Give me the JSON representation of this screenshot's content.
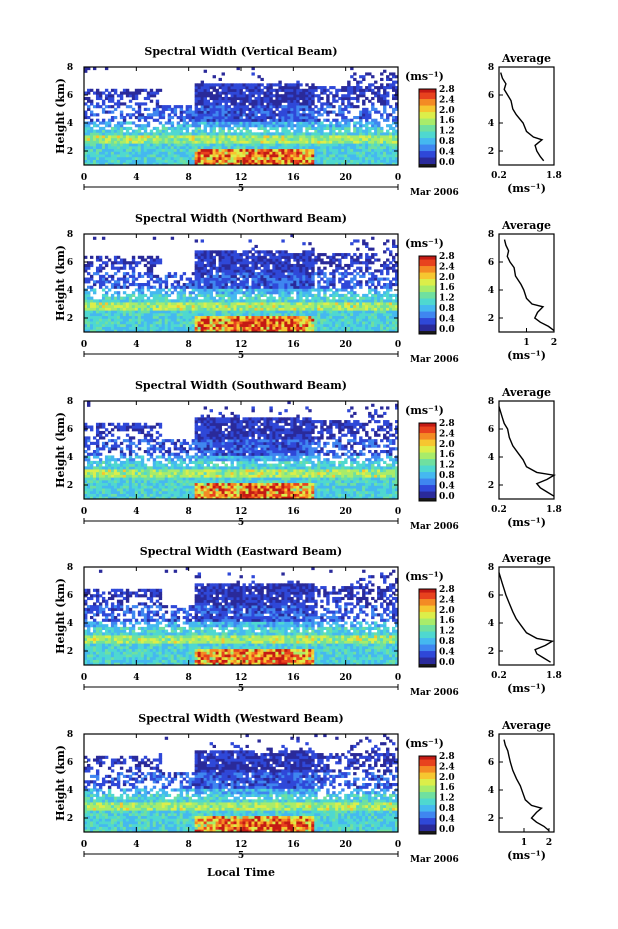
{
  "colors": {
    "scale": [
      "#1a1a1a",
      "#2a2a9a",
      "#2f48d8",
      "#3f86f0",
      "#45b8f0",
      "#4fd8d0",
      "#6fe0a0",
      "#a8ec6a",
      "#dcee4a",
      "#f6c630",
      "#f48a24",
      "#e8421e",
      "#c41a14"
    ],
    "axis": "#000000"
  },
  "chart_data": [
    {
      "type": "heatmap",
      "title": "Spectral Width (Vertical Beam)",
      "ylabel": "Height (km)",
      "xlabel": "",
      "x_ticks": [
        "0",
        "4",
        "8",
        "12",
        "16",
        "20",
        "0"
      ],
      "day_label": "5",
      "date_label": "Mar 2006",
      "ylim": [
        1,
        8
      ],
      "y_ticks": [
        "2",
        "4",
        "6",
        "8"
      ],
      "xlim": [
        0,
        24
      ],
      "colorbar": {
        "unit": "(ms⁻¹)",
        "ticks": [
          "2.8",
          "2.4",
          "2.0",
          "1.6",
          "1.2",
          "0.8",
          "0.4",
          "0.0"
        ],
        "range": [
          0,
          3
        ]
      },
      "average": {
        "title": "Average",
        "xlabel": "(ms⁻¹)",
        "x_ticks": [
          "0.2",
          "1.8"
        ],
        "xlim": [
          0.2,
          1.8
        ],
        "ylim": [
          1,
          8
        ],
        "y_ticks": [
          "2",
          "4",
          "6",
          "8"
        ],
        "profile": [
          [
            1.5,
            1.3
          ],
          [
            1.4,
            1.6
          ],
          [
            1.3,
            2.0
          ],
          [
            1.25,
            2.4
          ],
          [
            1.35,
            2.6
          ],
          [
            1.45,
            2.8
          ],
          [
            1.2,
            3.0
          ],
          [
            1.0,
            3.4
          ],
          [
            0.9,
            4.0
          ],
          [
            0.7,
            4.6
          ],
          [
            0.6,
            5.0
          ],
          [
            0.55,
            5.6
          ],
          [
            0.45,
            6.0
          ],
          [
            0.35,
            6.4
          ],
          [
            0.4,
            6.8
          ],
          [
            0.3,
            7.2
          ],
          [
            0.25,
            7.6
          ]
        ]
      }
    },
    {
      "type": "heatmap",
      "title": "Spectral Width (Northward Beam)",
      "ylabel": "Height (km)",
      "xlabel": "",
      "x_ticks": [
        "0",
        "4",
        "8",
        "12",
        "16",
        "20",
        "0"
      ],
      "day_label": "5",
      "date_label": "Mar 2006",
      "ylim": [
        1,
        8
      ],
      "y_ticks": [
        "2",
        "4",
        "6",
        "8"
      ],
      "xlim": [
        0,
        24
      ],
      "colorbar": {
        "unit": "(ms⁻¹)",
        "ticks": [
          "2.8",
          "2.4",
          "2.0",
          "1.6",
          "1.2",
          "0.8",
          "0.4",
          "0.0"
        ],
        "range": [
          0,
          3
        ]
      },
      "average": {
        "title": "Average",
        "xlabel": "(ms⁻¹)",
        "x_ticks": [
          "1",
          "2"
        ],
        "xlim": [
          0,
          2
        ],
        "ylim": [
          1,
          8
        ],
        "y_ticks": [
          "2",
          "4",
          "6",
          "8"
        ],
        "profile": [
          [
            2.0,
            1.1
          ],
          [
            1.8,
            1.4
          ],
          [
            1.5,
            1.7
          ],
          [
            1.3,
            2.0
          ],
          [
            1.4,
            2.4
          ],
          [
            1.6,
            2.8
          ],
          [
            1.2,
            3.0
          ],
          [
            1.0,
            3.4
          ],
          [
            0.9,
            4.0
          ],
          [
            0.8,
            4.4
          ],
          [
            0.6,
            5.0
          ],
          [
            0.55,
            5.6
          ],
          [
            0.4,
            6.0
          ],
          [
            0.3,
            6.4
          ],
          [
            0.35,
            6.8
          ],
          [
            0.25,
            7.2
          ],
          [
            0.2,
            7.6
          ]
        ]
      }
    },
    {
      "type": "heatmap",
      "title": "Spectral Width (Southward Beam)",
      "ylabel": "Height (km)",
      "xlabel": "",
      "x_ticks": [
        "0",
        "4",
        "8",
        "12",
        "16",
        "20",
        "0"
      ],
      "day_label": "5",
      "date_label": "Mar 2006",
      "ylim": [
        1,
        8
      ],
      "y_ticks": [
        "2",
        "4",
        "6",
        "8"
      ],
      "xlim": [
        0,
        24
      ],
      "colorbar": {
        "unit": "(ms⁻¹)",
        "ticks": [
          "2.8",
          "2.4",
          "2.0",
          "1.6",
          "1.2",
          "0.8",
          "0.4",
          "0.0"
        ],
        "range": [
          0,
          3
        ]
      },
      "average": {
        "title": "Average",
        "xlabel": "(ms⁻¹)",
        "x_ticks": [
          "0.2",
          "1.8"
        ],
        "xlim": [
          0.2,
          1.8
        ],
        "ylim": [
          1,
          8
        ],
        "y_ticks": [
          "2",
          "4",
          "6",
          "8"
        ],
        "profile": [
          [
            1.8,
            1.2
          ],
          [
            1.6,
            1.5
          ],
          [
            1.4,
            1.8
          ],
          [
            1.3,
            2.1
          ],
          [
            1.6,
            2.4
          ],
          [
            1.8,
            2.7
          ],
          [
            1.3,
            2.9
          ],
          [
            1.0,
            3.3
          ],
          [
            0.9,
            3.8
          ],
          [
            0.75,
            4.3
          ],
          [
            0.6,
            4.8
          ],
          [
            0.5,
            5.4
          ],
          [
            0.45,
            6.0
          ],
          [
            0.35,
            6.4
          ],
          [
            0.3,
            6.8
          ],
          [
            0.25,
            7.2
          ],
          [
            0.2,
            7.6
          ]
        ]
      }
    },
    {
      "type": "heatmap",
      "title": "Spectral Width (Eastward Beam)",
      "ylabel": "Height (km)",
      "xlabel": "",
      "x_ticks": [
        "0",
        "4",
        "8",
        "12",
        "16",
        "20",
        "0"
      ],
      "day_label": "5",
      "date_label": "Mar 2006",
      "ylim": [
        1,
        8
      ],
      "y_ticks": [
        "2",
        "4",
        "6",
        "8"
      ],
      "xlim": [
        0,
        24
      ],
      "colorbar": {
        "unit": "(ms⁻¹)",
        "ticks": [
          "2.8",
          "2.4",
          "2.0",
          "1.6",
          "1.2",
          "0.8",
          "0.4",
          "0.0"
        ],
        "range": [
          0,
          3
        ]
      },
      "average": {
        "title": "Average",
        "xlabel": "(ms⁻¹)",
        "x_ticks": [
          "0.2",
          "1.8"
        ],
        "xlim": [
          0.2,
          1.8
        ],
        "ylim": [
          1,
          8
        ],
        "y_ticks": [
          "2",
          "4",
          "6",
          "8"
        ],
        "profile": [
          [
            1.7,
            1.2
          ],
          [
            1.5,
            1.5
          ],
          [
            1.3,
            1.8
          ],
          [
            1.25,
            2.1
          ],
          [
            1.55,
            2.4
          ],
          [
            1.75,
            2.7
          ],
          [
            1.3,
            2.9
          ],
          [
            1.0,
            3.3
          ],
          [
            0.85,
            3.8
          ],
          [
            0.7,
            4.3
          ],
          [
            0.6,
            4.8
          ],
          [
            0.5,
            5.4
          ],
          [
            0.4,
            6.0
          ],
          [
            0.35,
            6.4
          ],
          [
            0.3,
            6.8
          ],
          [
            0.25,
            7.2
          ],
          [
            0.2,
            7.6
          ]
        ]
      }
    },
    {
      "type": "heatmap",
      "title": "Spectral Width (Westward Beam)",
      "ylabel": "Height (km)",
      "xlabel": "Local Time",
      "x_ticks": [
        "0",
        "4",
        "8",
        "12",
        "16",
        "20",
        "0"
      ],
      "day_label": "5",
      "date_label": "Mar 2006",
      "ylim": [
        1,
        8
      ],
      "y_ticks": [
        "2",
        "4",
        "6",
        "8"
      ],
      "xlim": [
        0,
        24
      ],
      "colorbar": {
        "unit": "(ms⁻¹)",
        "ticks": [
          "2.8",
          "2.4",
          "2.0",
          "1.6",
          "1.2",
          "0.8",
          "0.4",
          "0.0"
        ],
        "range": [
          0,
          3
        ]
      },
      "average": {
        "title": "Average",
        "xlabel": "(ms⁻¹)",
        "x_ticks": [
          "1",
          "2"
        ],
        "xlim": [
          0,
          2.2
        ],
        "ylim": [
          1,
          8
        ],
        "y_ticks": [
          "2",
          "4",
          "6",
          "8"
        ],
        "profile": [
          [
            2.0,
            1.1
          ],
          [
            1.8,
            1.4
          ],
          [
            1.5,
            1.7
          ],
          [
            1.3,
            2.0
          ],
          [
            1.5,
            2.4
          ],
          [
            1.7,
            2.7
          ],
          [
            1.3,
            2.9
          ],
          [
            1.05,
            3.3
          ],
          [
            0.95,
            3.8
          ],
          [
            0.85,
            4.3
          ],
          [
            0.7,
            4.8
          ],
          [
            0.55,
            5.4
          ],
          [
            0.45,
            6.0
          ],
          [
            0.4,
            6.4
          ],
          [
            0.35,
            6.8
          ],
          [
            0.25,
            7.2
          ],
          [
            0.2,
            7.6
          ]
        ]
      }
    }
  ]
}
